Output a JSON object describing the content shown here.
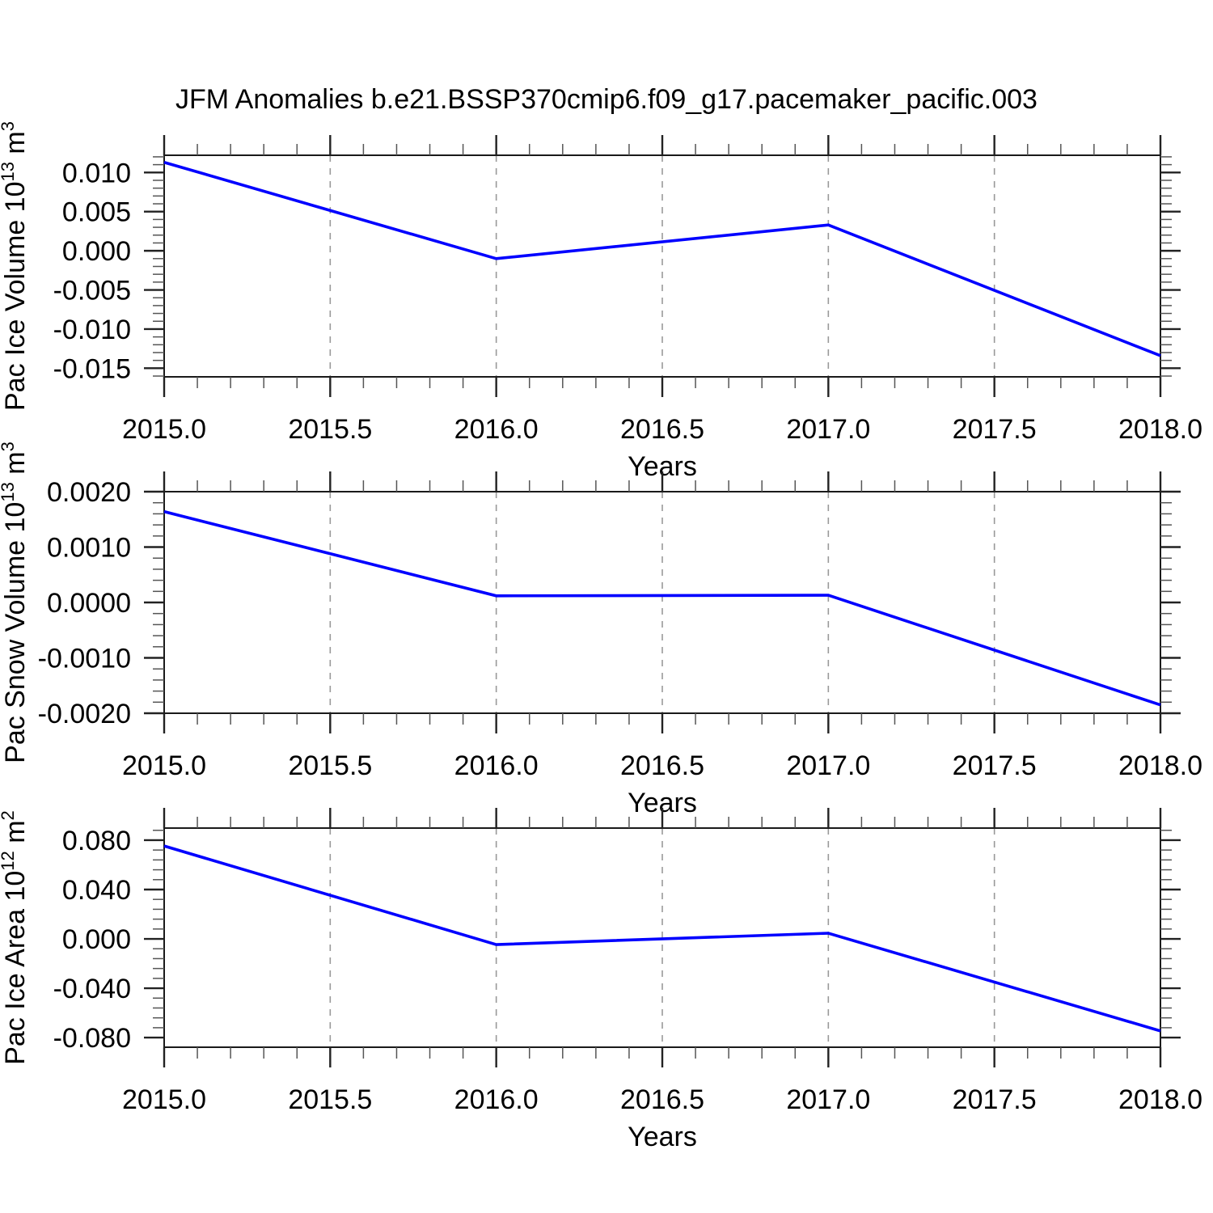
{
  "title": "JFM Anomalies b.e21.BSSP370cmip6.f09_g17.pacemaker_pacific.003",
  "colors": {
    "line": "#0000ff",
    "frame": "#1a1a1a",
    "major_tick": "#222222",
    "minor_tick": "#555555",
    "grid": "#999999",
    "text": "#000000",
    "background": "#ffffff"
  },
  "x_axis": {
    "label": "Years",
    "min": 2015.0,
    "max": 2018.0,
    "major_step": 0.5,
    "minor_step": 0.1
  },
  "chart_data": [
    {
      "type": "line",
      "ylabel": "Pac Ice Volume 10^13 m^3",
      "ylabel_parts": [
        {
          "t": "Pac Ice Volume 10"
        },
        {
          "t": "13",
          "sup": true
        },
        {
          "t": " m"
        },
        {
          "t": "3",
          "sup": true
        }
      ],
      "xlabel": "Years",
      "x": [
        2015.0,
        2016.0,
        2017.0,
        2018.0
      ],
      "values": [
        0.0113,
        -0.001,
        0.0033,
        -0.0134
      ],
      "xlim": [
        2015.0,
        2018.0
      ],
      "ylim": [
        -0.0161,
        0.0122
      ],
      "xtick_labels": [
        "2015.0",
        "2015.5",
        "2016.0",
        "2016.5",
        "2017.0",
        "2017.5",
        "2018.0"
      ],
      "xtick_values": [
        2015.0,
        2015.5,
        2016.0,
        2016.5,
        2017.0,
        2017.5,
        2018.0
      ],
      "xminor_step": 0.1,
      "ytick_values": [
        0.01,
        0.005,
        0.0,
        -0.005,
        -0.01,
        -0.015
      ],
      "ytick_labels": [
        "0.010",
        "0.005",
        "0.000",
        "-0.005",
        "-0.010",
        "-0.015"
      ],
      "yminor_step": 0.001,
      "gridline_x": [
        2015.5,
        2016.0,
        2016.5,
        2017.0,
        2017.5
      ],
      "grid": "vertical-dashed",
      "legend": "none"
    },
    {
      "type": "line",
      "ylabel": "Pac Snow Volume 10^13 m^3",
      "ylabel_parts": [
        {
          "t": "Pac Snow Volume 10"
        },
        {
          "t": "13",
          "sup": true
        },
        {
          "t": " m"
        },
        {
          "t": "3",
          "sup": true
        }
      ],
      "xlabel": "Years",
      "x": [
        2015.0,
        2016.0,
        2017.0,
        2018.0
      ],
      "values": [
        0.00164,
        0.00012,
        0.00013,
        -0.00185
      ],
      "xlim": [
        2015.0,
        2018.0
      ],
      "ylim": [
        -0.002,
        0.002
      ],
      "xtick_labels": [
        "2015.0",
        "2015.5",
        "2016.0",
        "2016.5",
        "2017.0",
        "2017.5",
        "2018.0"
      ],
      "xtick_values": [
        2015.0,
        2015.5,
        2016.0,
        2016.5,
        2017.0,
        2017.5,
        2018.0
      ],
      "xminor_step": 0.1,
      "ytick_values": [
        0.002,
        0.001,
        0.0,
        -0.001,
        -0.002
      ],
      "ytick_labels": [
        "0.0020",
        "0.0010",
        "0.0000",
        "-0.0010",
        "-0.0020"
      ],
      "yminor_step": 0.0002,
      "gridline_x": [
        2015.5,
        2016.0,
        2016.5,
        2017.0,
        2017.5
      ],
      "grid": "vertical-dashed",
      "legend": "none"
    },
    {
      "type": "line",
      "ylabel": "Pac Ice Area 10^12 m^2",
      "ylabel_parts": [
        {
          "t": "Pac Ice Area 10"
        },
        {
          "t": "12",
          "sup": true
        },
        {
          "t": " m"
        },
        {
          "t": "2",
          "sup": true
        }
      ],
      "xlabel": "Years",
      "x": [
        2015.0,
        2016.0,
        2017.0,
        2018.0
      ],
      "values": [
        0.0753,
        -0.0046,
        0.0046,
        -0.0746
      ],
      "xlim": [
        2015.0,
        2018.0
      ],
      "ylim": [
        -0.0878,
        0.0898
      ],
      "xtick_labels": [
        "2015.0",
        "2015.5",
        "2016.0",
        "2016.5",
        "2017.0",
        "2017.5",
        "2018.0"
      ],
      "xtick_values": [
        2015.0,
        2015.5,
        2016.0,
        2016.5,
        2017.0,
        2017.5,
        2018.0
      ],
      "xminor_step": 0.1,
      "ytick_values": [
        0.08,
        0.04,
        0.0,
        -0.04,
        -0.08
      ],
      "ytick_labels": [
        "0.080",
        "0.040",
        "0.000",
        "-0.040",
        "-0.080"
      ],
      "yminor_step": 0.008,
      "gridline_x": [
        2015.5,
        2016.0,
        2016.5,
        2017.0,
        2017.5
      ],
      "grid": "vertical-dashed",
      "legend": "none"
    }
  ]
}
